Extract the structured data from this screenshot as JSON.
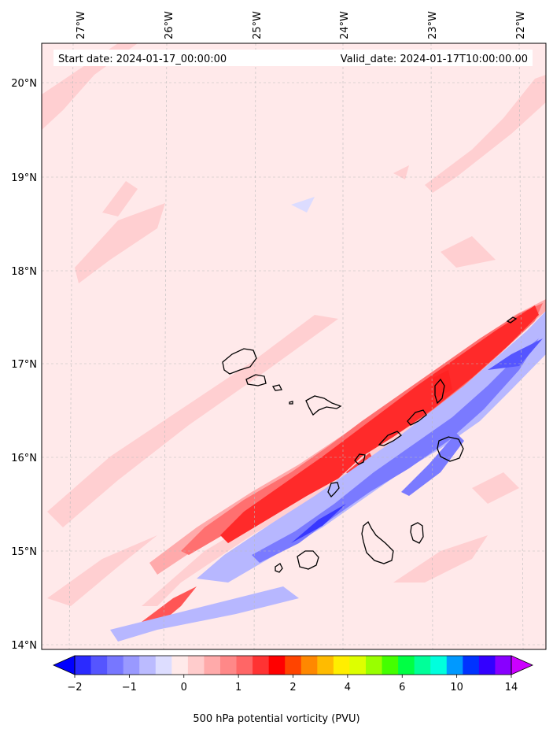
{
  "header": {
    "start_date": "Start date: 2024-01-17_00:00:00",
    "valid_date": "Valid_date: 2024-01-17T10:00:00.00"
  },
  "map": {
    "lon_labels": [
      "27°W",
      "26°W",
      "25°W",
      "24°W",
      "23°W",
      "22°W"
    ],
    "lat_labels": [
      "20°N",
      "19°N",
      "18°N",
      "17°N",
      "16°N",
      "15°N",
      "14°N"
    ],
    "background_color": "#ffe9ea",
    "grid": true
  },
  "colorbar": {
    "label": "500 hPa potential vorticity (PVU)",
    "ticks": [
      "−2",
      "−1",
      "0",
      "1",
      "2",
      "4",
      "6",
      "10",
      "14"
    ],
    "colors": [
      "#0000ff",
      "#2a2aff",
      "#5555ff",
      "#7777ff",
      "#9999ff",
      "#bbbbff",
      "#ddddff",
      "#ffeaea",
      "#ffcccc",
      "#ffaaaa",
      "#ff8888",
      "#ff6666",
      "#ff3333",
      "#ff0000",
      "#ff4400",
      "#ff8800",
      "#ffbb00",
      "#ffee00",
      "#ddff00",
      "#99ff00",
      "#44ff00",
      "#00ff44",
      "#00ff99",
      "#00ffdd",
      "#0099ff",
      "#0033ff",
      "#3300ff",
      "#8800ff",
      "#cc00ff"
    ]
  }
}
